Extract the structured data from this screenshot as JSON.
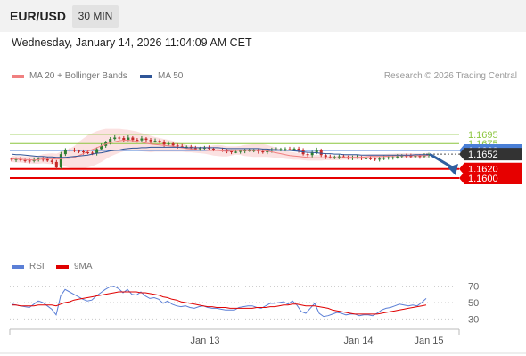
{
  "header": {
    "symbol": "EUR/USD",
    "timeframe": "30 MIN"
  },
  "timestamp": "Wednesday, January 14, 2026 11:04:09 AM CET",
  "legend": {
    "ma20_label": "MA 20 + Bollinger Bands",
    "ma50_label": "MA 50",
    "credit": "Research © 2026 Trading Central",
    "ma20_color": "#f08080",
    "ma50_color": "#2f5597"
  },
  "rsi_legend": {
    "rsi_label": "RSI",
    "ma_label": "9MA",
    "rsi_color": "#5b7fd6",
    "ma_color": "#e00000"
  },
  "colors": {
    "green_level": "#8cc63f",
    "blue_level": "#4a7fd6",
    "red_level": "#e60000",
    "up_candle": "#2e7d32",
    "down_candle": "#c62828",
    "arrow": "#2f5f9f",
    "band_fill": "#fbe1e1"
  },
  "chart_data": {
    "type": "candlestick",
    "symbol": "EUR/USD",
    "timeframe": "30 MIN",
    "price_levels": [
      {
        "value": 1.1695,
        "label": "1.1695",
        "kind": "resistance"
      },
      {
        "value": 1.1675,
        "label": "1.1675",
        "kind": "resistance"
      },
      {
        "value": 1.166,
        "label": "1.1660",
        "kind": "pivot"
      },
      {
        "value": 1.1652,
        "label": "1.1652",
        "kind": "last"
      },
      {
        "value": 1.162,
        "label": "1.1620",
        "kind": "support"
      },
      {
        "value": 1.16,
        "label": "1.1600",
        "kind": "target"
      }
    ],
    "x_ticks": [
      "Jan 13",
      "Jan 14",
      "Jan 15"
    ],
    "close": [
      1.164,
      1.1641,
      1.1639,
      1.1638,
      1.1637,
      1.164,
      1.1642,
      1.1641,
      1.1638,
      1.1635,
      1.1623,
      1.1652,
      1.1662,
      1.1661,
      1.1659,
      1.1658,
      1.1656,
      1.1655,
      1.1654,
      1.1663,
      1.167,
      1.1678,
      1.1685,
      1.1688,
      1.1687,
      1.1683,
      1.1688,
      1.1683,
      1.1682,
      1.1686,
      1.1683,
      1.168,
      1.1681,
      1.1679,
      1.1673,
      1.1675,
      1.1671,
      1.1669,
      1.1668,
      1.1668,
      1.1665,
      1.1663,
      1.1665,
      1.1666,
      1.1664,
      1.1662,
      1.1661,
      1.166,
      1.1658,
      1.1657,
      1.1657,
      1.1659,
      1.166,
      1.166,
      1.166,
      1.1658,
      1.1656,
      1.166,
      1.1662,
      1.1662,
      1.1663,
      1.1663,
      1.1662,
      1.1664,
      1.166,
      1.1652,
      1.165,
      1.1655,
      1.1661,
      1.165,
      1.1646,
      1.1645,
      1.1646,
      1.1647,
      1.1646,
      1.1644,
      1.1645,
      1.1645,
      1.1643,
      1.1643,
      1.1642,
      1.1641,
      1.1642,
      1.1644,
      1.1645,
      1.1645,
      1.1647,
      1.1649,
      1.1648,
      1.1647,
      1.1648,
      1.1647,
      1.1649,
      1.1652
    ],
    "ma20": [
      1.1642,
      1.1641,
      1.1641,
      1.164,
      1.164,
      1.1639,
      1.164,
      1.1642,
      1.1642,
      1.1642,
      1.1641,
      1.1642,
      1.1643,
      1.1643,
      1.1645,
      1.1649,
      1.1653,
      1.1658,
      1.1662,
      1.1666,
      1.167,
      1.1674,
      1.1677,
      1.1679,
      1.1681,
      1.1682,
      1.1682,
      1.1681,
      1.168,
      1.1678,
      1.1676,
      1.1674,
      1.1673,
      1.1672,
      1.1671,
      1.167,
      1.1669,
      1.1667,
      1.1666,
      1.1664,
      1.1663,
      1.1662,
      1.1661,
      1.1661,
      1.166,
      1.166,
      1.166,
      1.1659,
      1.1658,
      1.1659,
      1.166,
      1.166,
      1.166,
      1.166,
      1.166,
      1.166,
      1.166,
      1.1659,
      1.1657,
      1.1655,
      1.1653,
      1.1651,
      1.1649,
      1.1648,
      1.1647,
      1.1646,
      1.1645,
      1.1644,
      1.1644,
      1.1644,
      1.1644,
      1.1644,
      1.1644,
      1.1644,
      1.1645,
      1.1645,
      1.1645,
      1.1645,
      1.1645,
      1.1646,
      1.1647,
      1.1647,
      1.1647,
      1.1647,
      1.1648,
      1.1648,
      1.1649,
      1.1649,
      1.1649,
      1.1649,
      1.1649,
      1.1649,
      1.1649,
      1.165
    ],
    "ma50": [
      1.1652,
      1.1651,
      1.1651,
      1.165,
      1.1649,
      1.1648,
      1.1647,
      1.1647,
      1.1646,
      1.1646,
      1.1645,
      1.1645,
      1.1645,
      1.1646,
      1.1647,
      1.1648,
      1.1649,
      1.165,
      1.1652,
      1.1654,
      1.1655,
      1.1657,
      1.1659,
      1.166,
      1.1661,
      1.1663,
      1.1664,
      1.1665,
      1.1665,
      1.1666,
      1.1666,
      1.1667,
      1.1667,
      1.1667,
      1.1667,
      1.1667,
      1.1667,
      1.1667,
      1.1667,
      1.1666,
      1.1666,
      1.1666,
      1.1666,
      1.1666,
      1.1666,
      1.1666,
      1.1666,
      1.1665,
      1.1664,
      1.1664,
      1.1664,
      1.1664,
      1.1664,
      1.1664,
      1.1664,
      1.1664,
      1.1663,
      1.1663,
      1.1662,
      1.1662,
      1.1661,
      1.1661,
      1.166,
      1.1659,
      1.1658,
      1.1657,
      1.1656,
      1.1656,
      1.1655,
      1.1654,
      1.1653,
      1.1653,
      1.1652,
      1.1652,
      1.1651,
      1.1651,
      1.1651,
      1.1651,
      1.165,
      1.165,
      1.165,
      1.165,
      1.165,
      1.165,
      1.165,
      1.165,
      1.165,
      1.165,
      1.165,
      1.165,
      1.1651,
      1.1651,
      1.1651,
      1.1651
    ],
    "band_width": [
      0.0007,
      0.0007,
      0.0007,
      0.0007,
      0.0008,
      0.0008,
      0.0009,
      0.001,
      0.0011,
      0.0012,
      0.0012,
      0.0015,
      0.0018,
      0.0021,
      0.0025,
      0.003,
      0.0033,
      0.0035,
      0.0036,
      0.0036,
      0.0035,
      0.0033,
      0.003,
      0.0028,
      0.0026,
      0.0024,
      0.0023,
      0.0022,
      0.0021,
      0.002,
      0.0019,
      0.0018,
      0.0016,
      0.0015,
      0.0014,
      0.0013,
      0.0012,
      0.001,
      0.0009,
      0.0008,
      0.0007,
      0.0007,
      0.0007,
      0.0008,
      0.0009,
      0.0011,
      0.0012,
      0.0012,
      0.0011,
      0.001,
      0.0009,
      0.001,
      0.0012,
      0.0013,
      0.0014,
      0.0014,
      0.0014,
      0.0013,
      0.0012,
      0.0011,
      0.001,
      0.0009,
      0.0008,
      0.0008,
      0.0007,
      0.0007,
      0.0007,
      0.0006,
      0.0006,
      0.0006,
      0.0005,
      0.0005,
      0.0005,
      0.0005,
      0.0005,
      0.0005,
      0.0005,
      0.0005,
      0.0005,
      0.0005,
      0.0005,
      0.0005,
      0.0005,
      0.0005,
      0.0005,
      0.0005,
      0.0005,
      0.0005,
      0.0005,
      0.0005,
      0.0005,
      0.0005,
      0.0005,
      0.0005
    ],
    "rsi": {
      "ticks": [
        70,
        50,
        30
      ],
      "values": [
        48,
        47,
        46,
        45,
        44,
        48,
        52,
        50,
        46,
        42,
        35,
        58,
        66,
        63,
        60,
        57,
        54,
        52,
        53,
        58,
        62,
        66,
        69,
        70,
        67,
        62,
        66,
        60,
        59,
        63,
        58,
        55,
        56,
        54,
        49,
        52,
        48,
        46,
        45,
        46,
        44,
        43,
        45,
        46,
        44,
        43,
        43,
        42,
        41,
        41,
        41,
        44,
        45,
        46,
        46,
        44,
        43,
        46,
        49,
        49,
        50,
        51,
        48,
        52,
        47,
        39,
        37,
        43,
        49,
        37,
        33,
        34,
        36,
        38,
        37,
        35,
        36,
        36,
        34,
        35,
        35,
        34,
        37,
        41,
        43,
        44,
        46,
        48,
        47,
        46,
        47,
        46,
        50,
        55
      ],
      "ma9": [
        47,
        47,
        46,
        46,
        46,
        46,
        47,
        47,
        47,
        47,
        46,
        48,
        50,
        51,
        53,
        54,
        55,
        56,
        57,
        58,
        59,
        60,
        61,
        62,
        63,
        63,
        63,
        63,
        63,
        62,
        62,
        61,
        60,
        59,
        57,
        56,
        54,
        53,
        51,
        50,
        49,
        48,
        47,
        46,
        45,
        45,
        44,
        44,
        44,
        43,
        43,
        43,
        43,
        43,
        43,
        44,
        44,
        44,
        45,
        45,
        46,
        47,
        47,
        48,
        48,
        47,
        46,
        46,
        46,
        45,
        44,
        43,
        41,
        40,
        39,
        38,
        37,
        36,
        36,
        36,
        36,
        36,
        36,
        37,
        38,
        39,
        40,
        41,
        42,
        43,
        44,
        45,
        46,
        47
      ]
    }
  }
}
